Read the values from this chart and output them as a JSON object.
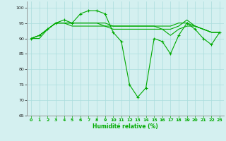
{
  "xlabel": "Humidité relative (%)",
  "ylabel": "",
  "xlim": [
    -0.5,
    23.5
  ],
  "ylim": [
    65,
    102
  ],
  "yticks": [
    65,
    70,
    75,
    80,
    85,
    90,
    95,
    100
  ],
  "xticks": [
    0,
    1,
    2,
    3,
    4,
    5,
    6,
    7,
    8,
    9,
    10,
    11,
    12,
    13,
    14,
    15,
    16,
    17,
    18,
    19,
    20,
    21,
    22,
    23
  ],
  "background_color": "#d4f0f0",
  "grid_color": "#aadddd",
  "line_color": "#00aa00",
  "series": [
    [
      90,
      91,
      93,
      95,
      96,
      95,
      98,
      99,
      99,
      98,
      92,
      89,
      75,
      71,
      74,
      90,
      89,
      85,
      91,
      95,
      93,
      90,
      88,
      92
    ],
    [
      90,
      91,
      93,
      95,
      95,
      94,
      94,
      94,
      94,
      94,
      94,
      94,
      94,
      94,
      94,
      94,
      94,
      94,
      95,
      95,
      94,
      93,
      92,
      92
    ],
    [
      90,
      90,
      93,
      95,
      95,
      95,
      95,
      95,
      95,
      95,
      94,
      94,
      94,
      94,
      94,
      94,
      93,
      93,
      94,
      96,
      94,
      93,
      92,
      92
    ],
    [
      90,
      91,
      93,
      95,
      95,
      95,
      95,
      95,
      95,
      94,
      93,
      93,
      93,
      93,
      93,
      93,
      93,
      91,
      93,
      94,
      94,
      93,
      92,
      92
    ]
  ]
}
